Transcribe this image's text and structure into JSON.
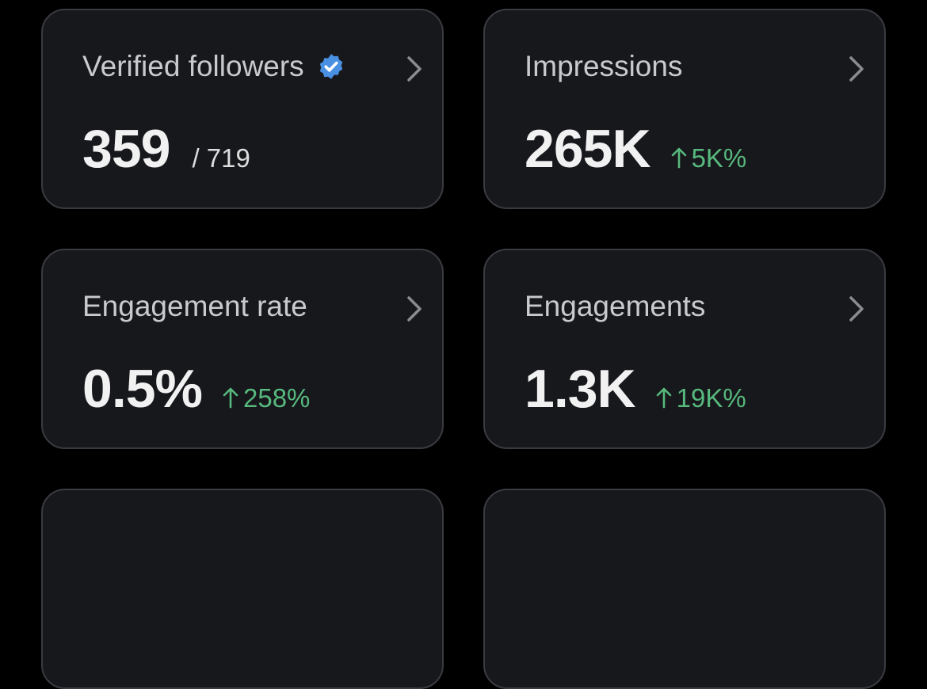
{
  "cards": [
    {
      "title": "Verified followers",
      "value": "359",
      "total": "/ 719",
      "verified_badge": true
    },
    {
      "title": "Impressions",
      "value": "265K",
      "change": "5K%"
    },
    {
      "title": "Engagement rate",
      "value": "0.5%",
      "change": "258%"
    },
    {
      "title": "Engagements",
      "value": "1.3K",
      "change": "19K%"
    }
  ]
}
